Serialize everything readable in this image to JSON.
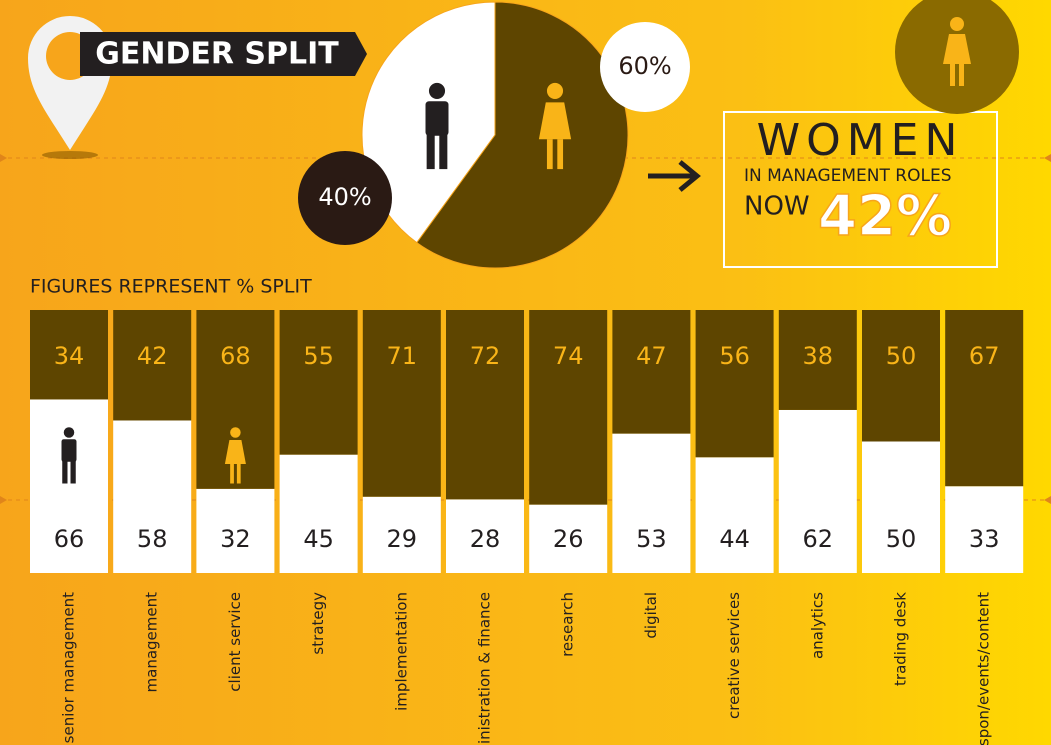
{
  "header": {
    "title": "GENDER SPLIT"
  },
  "callout": {
    "line1": "WOMEN",
    "line2": "IN MANAGEMENT ROLES",
    "line3": "NOW",
    "highlight": "42%"
  },
  "chart_data": [
    {
      "type": "pie",
      "values": [
        40,
        60
      ],
      "value_labels": [
        "40%",
        "60%"
      ],
      "colors": [
        "#ffffff",
        "#5e4500"
      ],
      "label_colors": [
        "#2a1a14",
        "#ffffff"
      ]
    },
    {
      "type": "stacked-bar",
      "subtitle": "FIGURES REPRESENT % SPLIT",
      "categories": [
        "senior management",
        "management",
        "client service",
        "strategy",
        "implementation",
        "administration & finance",
        "research",
        "digital",
        "creative services",
        "analytics",
        "trading desk",
        "spon/events/content"
      ],
      "series": [
        {
          "color": "#ffffff",
          "label_color": "#231f20",
          "values": [
            66,
            58,
            32,
            45,
            29,
            28,
            26,
            53,
            44,
            62,
            50,
            33
          ]
        },
        {
          "color": "#5e4500",
          "label_color": "#f9b418",
          "values": [
            34,
            42,
            68,
            55,
            71,
            72,
            74,
            47,
            56,
            38,
            50,
            67
          ]
        }
      ],
      "ylim": [
        0,
        100
      ]
    }
  ]
}
